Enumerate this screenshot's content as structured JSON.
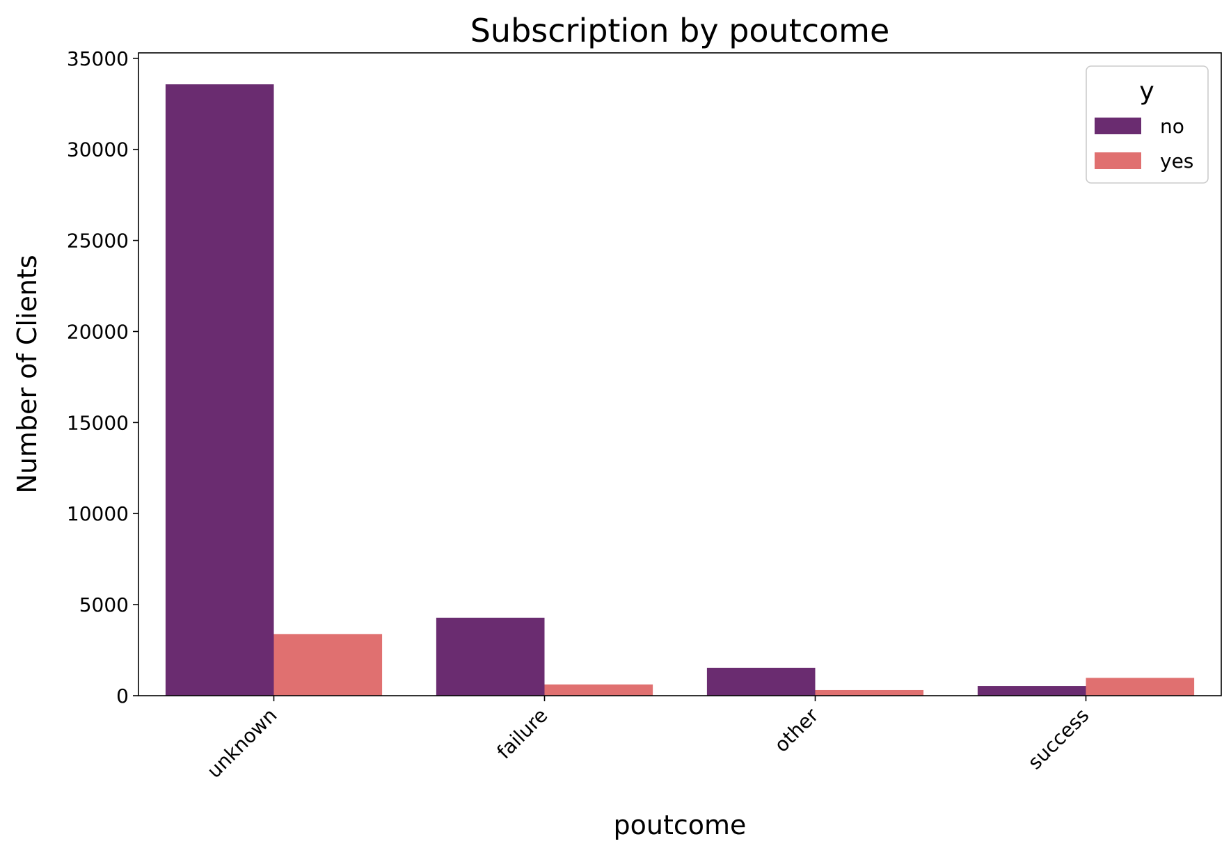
{
  "chart_data": {
    "type": "bar",
    "title": "Subscription by poutcome",
    "xlabel": "poutcome",
    "ylabel": "Number of Clients",
    "categories": [
      "unknown",
      "failure",
      "other",
      "success"
    ],
    "series": [
      {
        "name": "no",
        "color": "#6a2c70",
        "values": [
          33573,
          4283,
          1533,
          533
        ]
      },
      {
        "name": "yes",
        "color": "#e07070",
        "values": [
          3386,
          618,
          307,
          978
        ]
      }
    ],
    "ylim": [
      0,
      35300
    ],
    "yticks": [
      0,
      5000,
      10000,
      15000,
      20000,
      25000,
      30000,
      35000
    ],
    "legend": {
      "title": "y",
      "placement": "top-right"
    },
    "grid": false
  }
}
